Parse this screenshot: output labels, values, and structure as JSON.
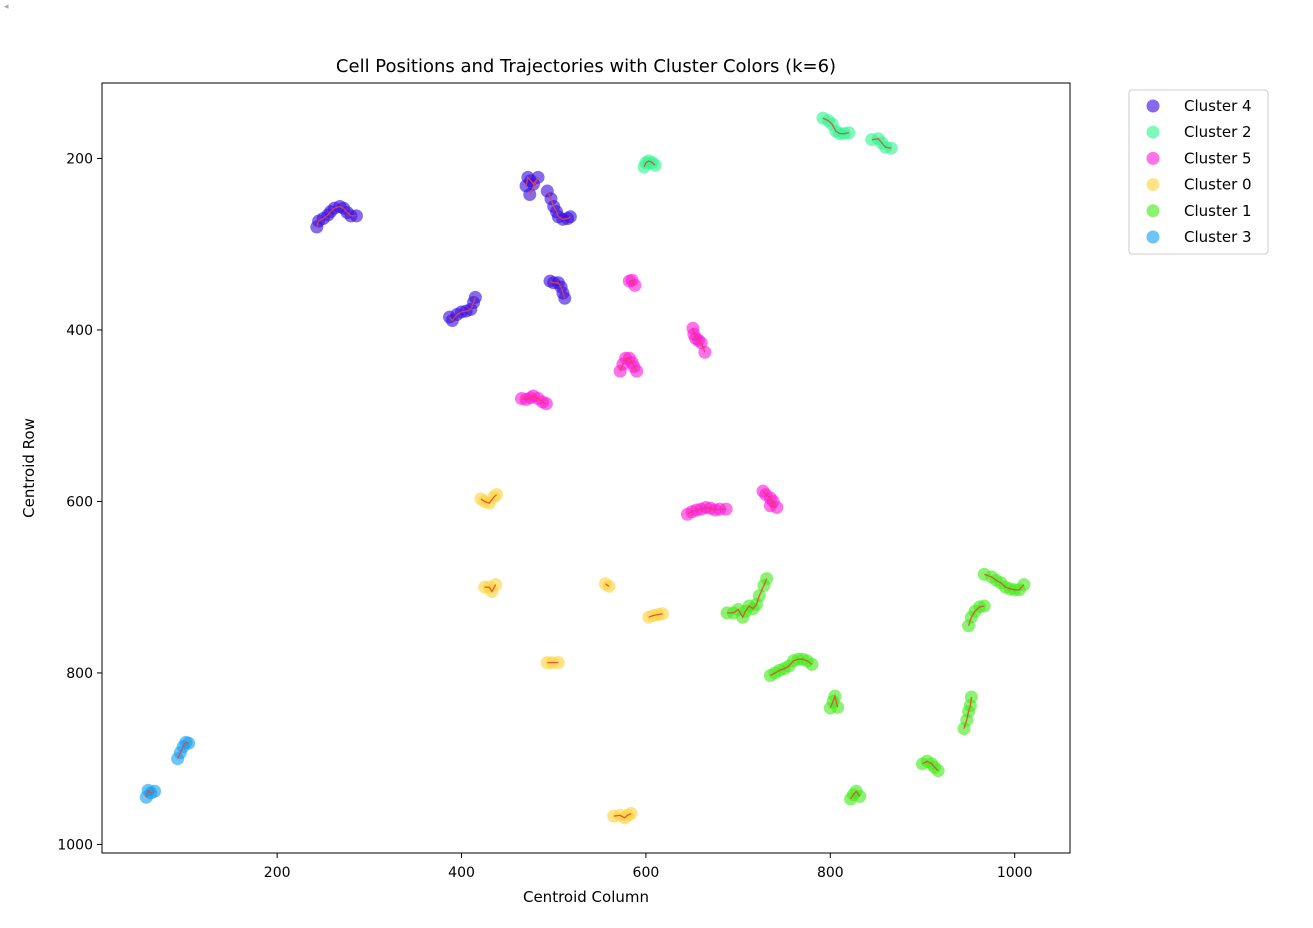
{
  "chart_data": {
    "type": "scatter",
    "title": "Cell Positions and Trajectories with Cluster Colors (k=6)",
    "xlabel": "Centroid Column",
    "ylabel": "Centroid Row",
    "xlim": [
      10,
      1060
    ],
    "ylim": [
      1010,
      112
    ],
    "y_inverted": true,
    "x_ticks": [
      200,
      400,
      600,
      800,
      1000
    ],
    "y_ticks": [
      200,
      400,
      600,
      800,
      1000
    ],
    "grid": false,
    "legend_position": "outside-top-right",
    "trajectory_color": "#e8463c",
    "series": [
      {
        "name": "Cluster 4",
        "color": "#3a0fe0",
        "tracks": [
          [
            [
              243,
              280
            ],
            [
              245,
              273
            ],
            [
              250,
              270
            ],
            [
              255,
              266
            ],
            [
              258,
              262
            ],
            [
              262,
              258
            ],
            [
              268,
              256
            ],
            [
              272,
              258
            ],
            [
              276,
              263
            ],
            [
              280,
              267
            ],
            [
              286,
              267
            ]
          ],
          [
            [
              470,
              232
            ],
            [
              472,
              222
            ],
            [
              475,
              226
            ],
            [
              478,
              230
            ],
            [
              483,
              222
            ],
            [
              474,
              242
            ]
          ],
          [
            [
              493,
              238
            ],
            [
              497,
              247
            ],
            [
              500,
              256
            ],
            [
              503,
              262
            ],
            [
              505,
              268
            ],
            [
              510,
              271
            ],
            [
              515,
              270
            ],
            [
              518,
              268
            ]
          ],
          [
            [
              387,
              385
            ],
            [
              390,
              389
            ],
            [
              395,
              382
            ],
            [
              400,
              379
            ],
            [
              405,
              378
            ],
            [
              410,
              376
            ],
            [
              413,
              368
            ],
            [
              415,
              362
            ]
          ],
          [
            [
              496,
              343
            ],
            [
              500,
              345
            ],
            [
              505,
              345
            ],
            [
              508,
              350
            ],
            [
              510,
              357
            ],
            [
              512,
              363
            ]
          ]
        ]
      },
      {
        "name": "Cluster 2",
        "color": "#2ef58f",
        "tracks": [
          [
            [
              792,
              153
            ],
            [
              798,
              156
            ],
            [
              802,
              160
            ],
            [
              806,
              168
            ],
            [
              810,
              171
            ],
            [
              815,
              171
            ],
            [
              820,
              170
            ]
          ],
          [
            [
              845,
              178
            ],
            [
              852,
              177
            ],
            [
              856,
              182
            ],
            [
              860,
              187
            ],
            [
              866,
              188
            ]
          ],
          [
            [
              598,
              210
            ],
            [
              600,
              205
            ],
            [
              603,
              203
            ],
            [
              607,
              205
            ],
            [
              610,
              208
            ]
          ]
        ]
      },
      {
        "name": "Cluster 5",
        "color": "#ff1cda",
        "tracks": [
          [
            [
              582,
              343
            ],
            [
              585,
              342
            ],
            [
              588,
              348
            ]
          ],
          [
            [
              651,
              398
            ],
            [
              652,
              405
            ],
            [
              654,
              410
            ],
            [
              657,
              412
            ],
            [
              660,
              415
            ],
            [
              664,
              426
            ]
          ],
          [
            [
              572,
              448
            ],
            [
              575,
              440
            ],
            [
              578,
              433
            ],
            [
              582,
              433
            ],
            [
              585,
              438
            ],
            [
              587,
              443
            ],
            [
              590,
              448
            ]
          ],
          [
            [
              465,
              480
            ],
            [
              470,
              481
            ],
            [
              475,
              479
            ],
            [
              478,
              477
            ],
            [
              483,
              480
            ],
            [
              488,
              484
            ],
            [
              492,
              486
            ]
          ],
          [
            [
              645,
              615
            ],
            [
              650,
              612
            ],
            [
              655,
              610
            ],
            [
              660,
              609
            ],
            [
              665,
              607
            ],
            [
              670,
              608
            ],
            [
              675,
              610
            ],
            [
              680,
              609
            ],
            [
              687,
              609
            ]
          ],
          [
            [
              727,
              588
            ],
            [
              730,
              592
            ],
            [
              735,
              596
            ],
            [
              738,
              600
            ],
            [
              735,
              605
            ],
            [
              742,
              607
            ]
          ]
        ]
      },
      {
        "name": "Cluster 0",
        "color": "#ffd43d",
        "tracks": [
          [
            [
              421,
              597
            ],
            [
              425,
              600
            ],
            [
              430,
              602
            ],
            [
              435,
              595
            ],
            [
              438,
              592
            ]
          ],
          [
            [
              425,
              700
            ],
            [
              430,
              700
            ],
            [
              433,
              705
            ],
            [
              437,
              697
            ]
          ],
          [
            [
              556,
              696
            ],
            [
              560,
              699
            ]
          ],
          [
            [
              603,
              735
            ],
            [
              608,
              733
            ],
            [
              613,
              732
            ],
            [
              618,
              731
            ]
          ],
          [
            [
              493,
              788
            ],
            [
              498,
              788
            ],
            [
              505,
              788
            ]
          ],
          [
            [
              565,
              967
            ],
            [
              572,
              966
            ],
            [
              577,
              969
            ],
            [
              580,
              966
            ],
            [
              584,
              964
            ]
          ]
        ]
      },
      {
        "name": "Cluster 1",
        "color": "#43ec1a",
        "tracks": [
          [
            [
              688,
              730
            ],
            [
              695,
              730
            ],
            [
              700,
              726
            ],
            [
              705,
              735
            ],
            [
              708,
              728
            ],
            [
              712,
              722
            ],
            [
              716,
              725
            ],
            [
              720,
              720
            ],
            [
              723,
              710
            ],
            [
              728,
              698
            ],
            [
              731,
              690
            ]
          ],
          [
            [
              735,
              803
            ],
            [
              740,
              800
            ],
            [
              745,
              797
            ],
            [
              750,
              795
            ],
            [
              755,
              792
            ],
            [
              760,
              786
            ],
            [
              765,
              784
            ],
            [
              770,
              784
            ],
            [
              775,
              786
            ],
            [
              780,
              790
            ]
          ],
          [
            [
              800,
              841
            ],
            [
              803,
              833
            ],
            [
              805,
              827
            ],
            [
              808,
              840
            ]
          ],
          [
            [
              822,
              947
            ],
            [
              825,
              942
            ],
            [
              828,
              938
            ],
            [
              832,
              944
            ]
          ],
          [
            [
              900,
              906
            ],
            [
              905,
              903
            ],
            [
              910,
              906
            ],
            [
              913,
              910
            ],
            [
              917,
              914
            ]
          ],
          [
            [
              945,
              865
            ],
            [
              948,
              855
            ],
            [
              950,
              845
            ],
            [
              952,
              838
            ],
            [
              953,
              828
            ]
          ],
          [
            [
              950,
              745
            ],
            [
              953,
              735
            ],
            [
              957,
              728
            ],
            [
              962,
              723
            ],
            [
              967,
              722
            ]
          ],
          [
            [
              967,
              685
            ],
            [
              975,
              688
            ],
            [
              980,
              692
            ],
            [
              985,
              695
            ],
            [
              990,
              700
            ],
            [
              995,
              702
            ],
            [
              1000,
              703
            ],
            [
              1005,
              703
            ],
            [
              1010,
              697
            ]
          ]
        ]
      },
      {
        "name": "Cluster 3",
        "color": "#14a0f0",
        "tracks": [
          [
            [
              58,
              945
            ],
            [
              60,
              937
            ],
            [
              63,
              940
            ],
            [
              67,
              938
            ]
          ],
          [
            [
              92,
              900
            ],
            [
              95,
              893
            ],
            [
              98,
              886
            ],
            [
              101,
              881
            ],
            [
              104,
              882
            ]
          ]
        ]
      }
    ]
  }
}
